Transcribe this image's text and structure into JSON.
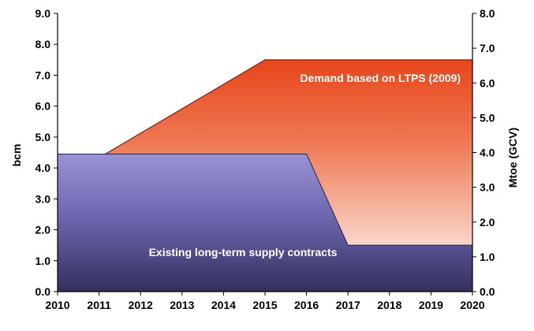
{
  "chart_data": {
    "type": "area",
    "x": [
      2010,
      2011,
      2012,
      2013,
      2014,
      2015,
      2016,
      2017,
      2018,
      2019,
      2020
    ],
    "xticks": [
      "2010",
      "2011",
      "2012",
      "2013",
      "2014",
      "2015",
      "2016",
      "2017",
      "2018",
      "2019",
      "2020"
    ],
    "yticks_left": [
      "0.0",
      "1.0",
      "2.0",
      "3.0",
      "4.0",
      "5.0",
      "6.0",
      "7.0",
      "8.0",
      "9.0"
    ],
    "yticks_right": [
      "0.0",
      "1.0",
      "2.0",
      "3.0",
      "4.0",
      "5.0",
      "6.0",
      "7.0",
      "8.0"
    ],
    "ylabel": "bcm",
    "ylabel_right": "Mtoe (GCV)",
    "ylim": [
      0,
      9
    ],
    "ylim_right": [
      0,
      8
    ],
    "grid": false,
    "series": [
      {
        "name": "Demand based on LTPS (2009)",
        "color_top": "#e8451a",
        "color_bottom": "#ffffff",
        "points": [
          [
            2011.15,
            4.45
          ],
          [
            2015,
            7.5
          ],
          [
            2020,
            7.5
          ]
        ]
      },
      {
        "name": "Existing long-term supply contracts",
        "color_top": "#9a93d6",
        "color_bottom": "#33305f",
        "points": [
          [
            2010,
            4.45
          ],
          [
            2016,
            4.45
          ],
          [
            2017,
            1.5
          ],
          [
            2020,
            1.5
          ]
        ]
      }
    ]
  }
}
